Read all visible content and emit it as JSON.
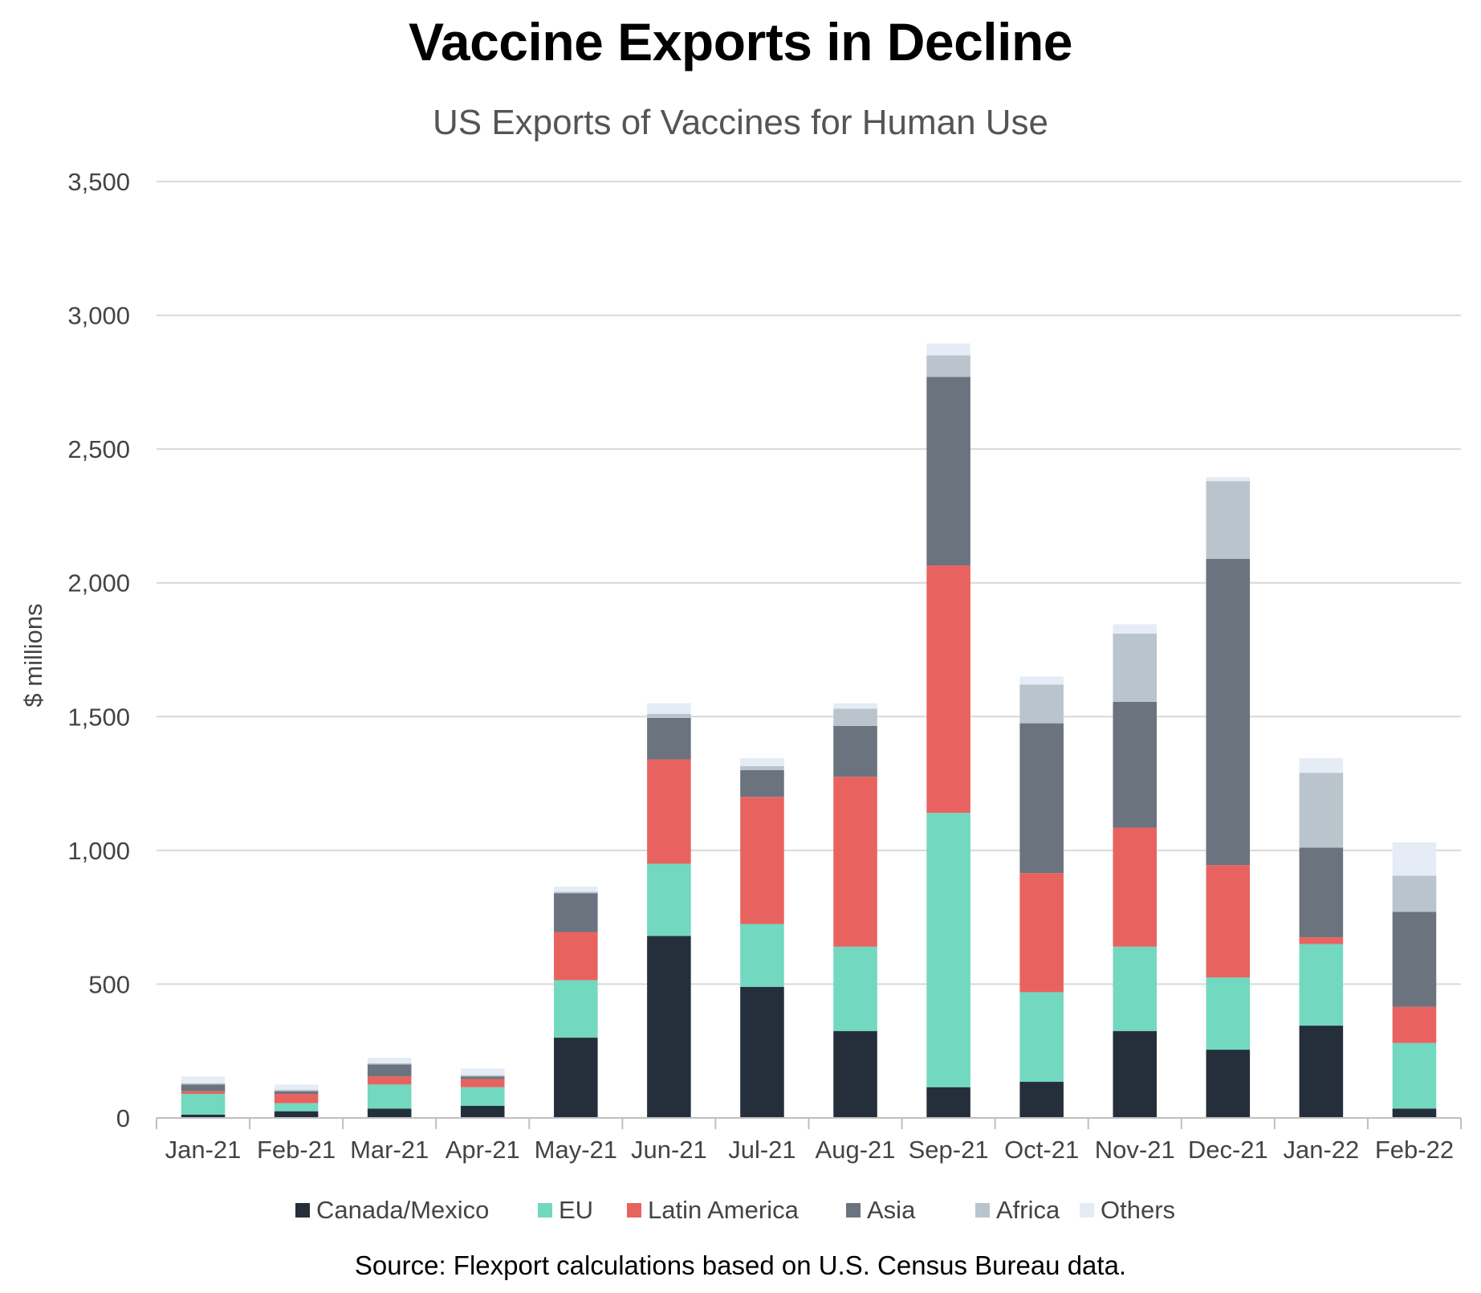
{
  "chart_data": {
    "type": "bar",
    "stacked": true,
    "title": "Vaccine Exports in Decline",
    "subtitle": "US Exports of Vaccines for Human Use",
    "source": "Source: Flexport calculations based on U.S. Census Bureau data.",
    "xlabel": "",
    "ylabel": "$ millions",
    "ylim": [
      0,
      3500
    ],
    "yticks": [
      0,
      500,
      1000,
      1500,
      2000,
      2500,
      3000,
      3500
    ],
    "ytick_labels": [
      "0",
      "500",
      "1,000",
      "1,500",
      "2,000",
      "2,500",
      "3,000",
      "3,500"
    ],
    "grid": true,
    "legend_position": "bottom",
    "categories": [
      "Jan-21",
      "Feb-21",
      "Mar-21",
      "Apr-21",
      "May-21",
      "Jun-21",
      "Jul-21",
      "Aug-21",
      "Sep-21",
      "Oct-21",
      "Nov-21",
      "Dec-21",
      "Jan-22",
      "Feb-22"
    ],
    "series": [
      {
        "name": "Canada/Mexico",
        "color": "#252f3b",
        "values": [
          12,
          25,
          35,
          45,
          300,
          680,
          490,
          325,
          115,
          135,
          325,
          255,
          345,
          35
        ]
      },
      {
        "name": "EU",
        "color": "#72d8bf",
        "values": [
          78,
          30,
          90,
          70,
          215,
          270,
          235,
          315,
          1025,
          335,
          315,
          270,
          305,
          245
        ]
      },
      {
        "name": "Latin America",
        "color": "#e8635f",
        "values": [
          10,
          35,
          30,
          30,
          180,
          390,
          475,
          635,
          925,
          445,
          445,
          420,
          25,
          135
        ]
      },
      {
        "name": "Asia",
        "color": "#6b737e",
        "values": [
          25,
          10,
          45,
          10,
          145,
          155,
          100,
          190,
          705,
          560,
          470,
          1145,
          335,
          355
        ]
      },
      {
        "name": "Africa",
        "color": "#b9c4cd",
        "values": [
          5,
          5,
          5,
          5,
          5,
          15,
          15,
          65,
          80,
          145,
          255,
          290,
          280,
          135
        ]
      },
      {
        "name": "Others",
        "color": "#e6ecf5",
        "values": [
          25,
          20,
          20,
          25,
          20,
          40,
          30,
          20,
          45,
          30,
          35,
          15,
          55,
          125
        ]
      }
    ]
  }
}
